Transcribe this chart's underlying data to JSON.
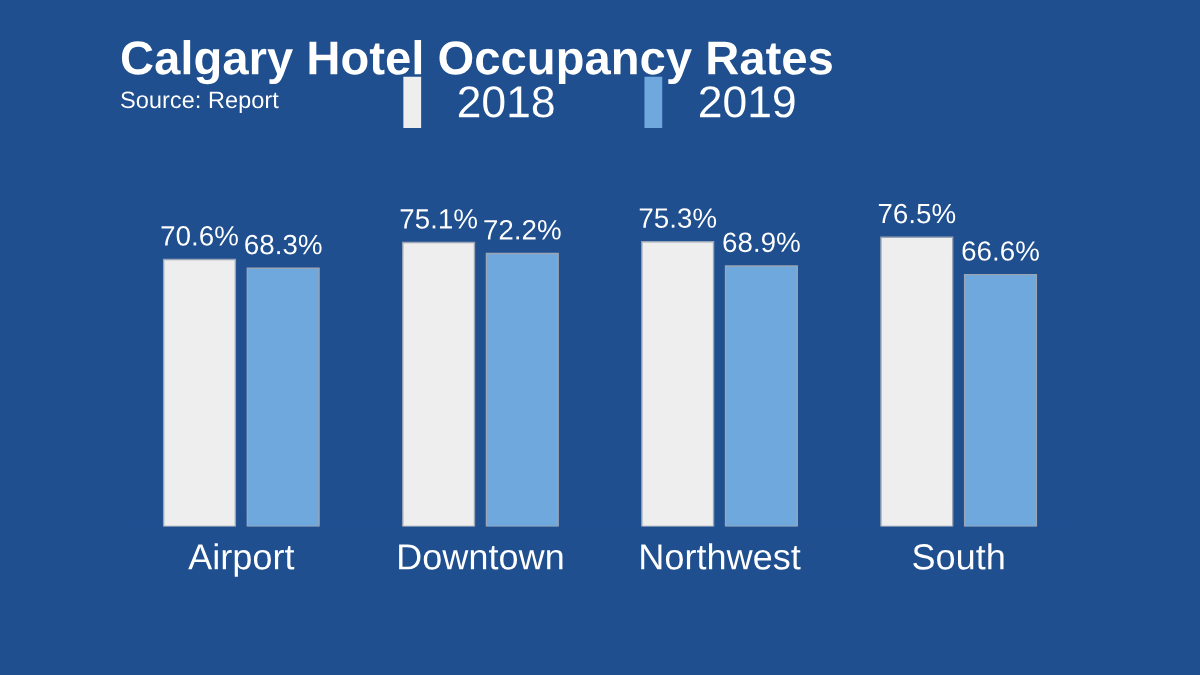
{
  "chart_data": {
    "type": "bar",
    "title": "Calgary Hotel Occupancy Rates",
    "annotations": [
      "Source: Report"
    ],
    "categories": [
      "Airport",
      "Downtown",
      "Northwest",
      "South"
    ],
    "series": [
      {
        "name": "2018",
        "color": "#eeeeee",
        "values": [
          70.6,
          75.1,
          75.3,
          76.5
        ],
        "value_labels": [
          "70.6%",
          "75.1%",
          "75.3%",
          "76.5%"
        ]
      },
      {
        "name": "2019",
        "color": "#6fa8dc",
        "values": [
          68.3,
          72.2,
          68.9,
          66.6
        ],
        "value_labels": [
          "68.3%",
          "72.2%",
          "68.9%",
          "66.6%"
        ]
      }
    ],
    "legend": "top",
    "grid": false
  }
}
